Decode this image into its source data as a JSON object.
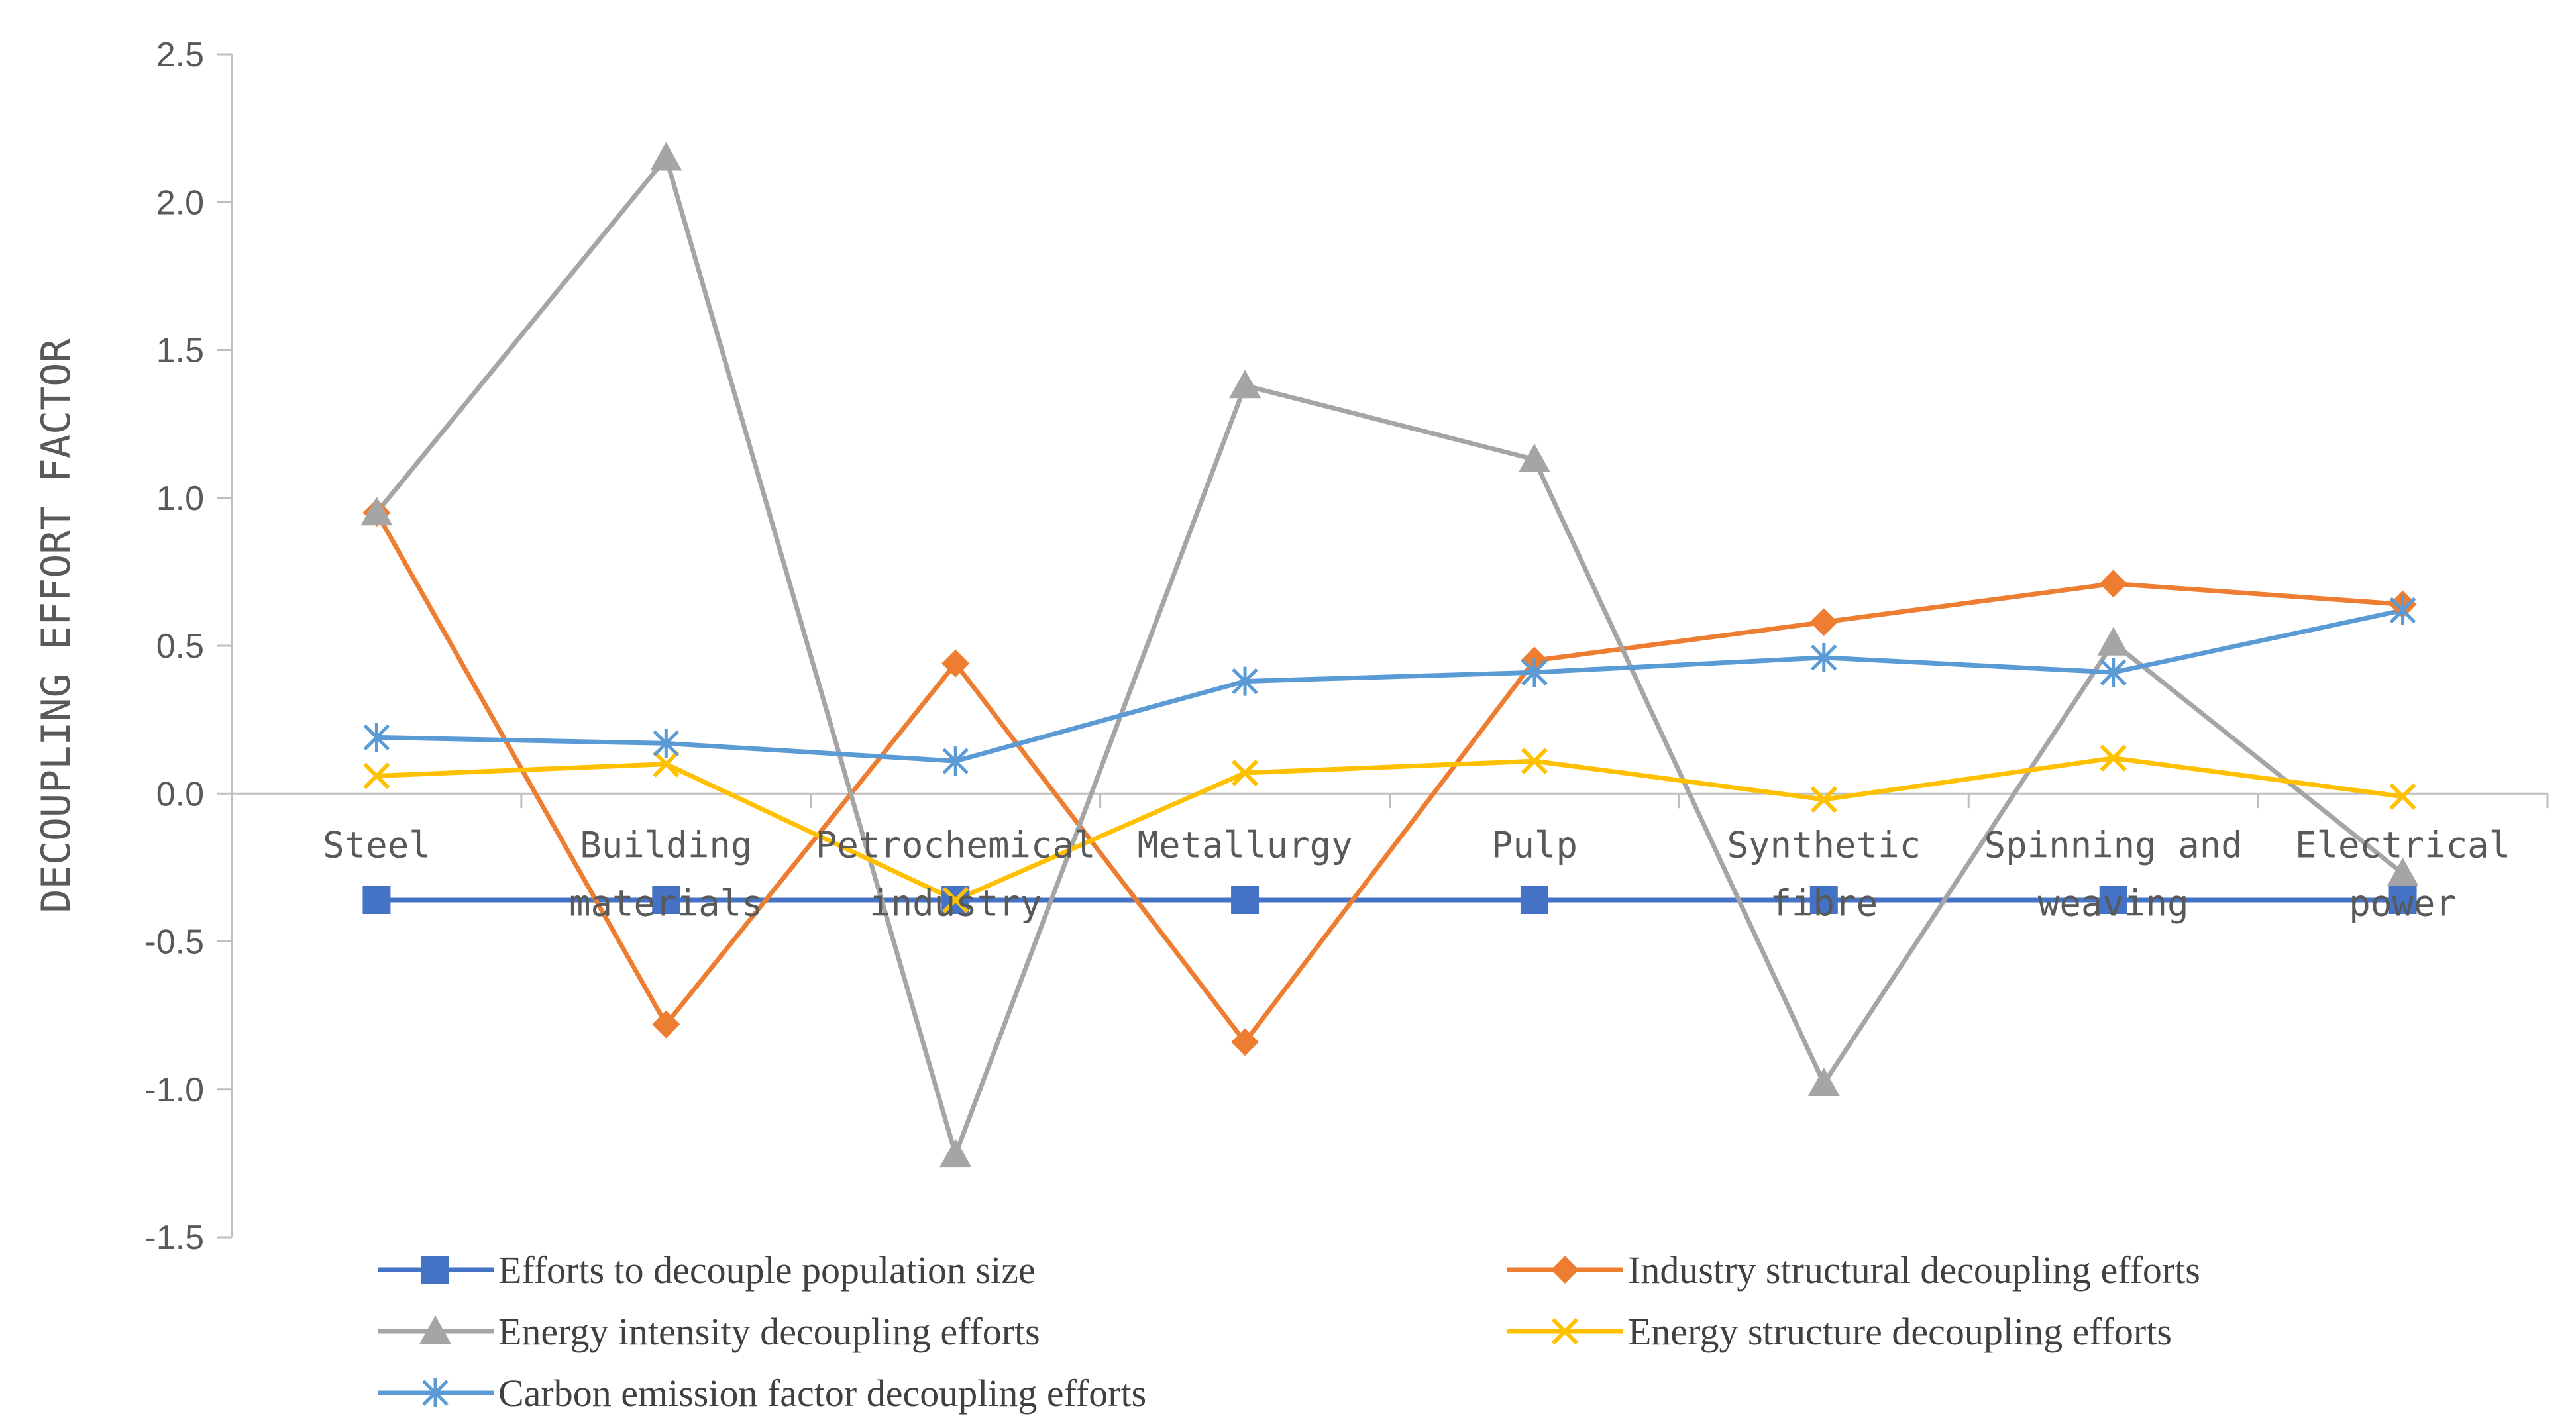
{
  "chart_data": {
    "type": "line",
    "ylabel": "DECOUPLING EFFORT FACTOR",
    "xlabel": "",
    "ylim": [
      -1.5,
      2.5
    ],
    "yticks": [
      "2.5",
      "2.0",
      "1.5",
      "1.0",
      "0.5",
      "0.0",
      "-0.5",
      "-1.0",
      "-1.5"
    ],
    "categories": [
      [
        "Steel"
      ],
      [
        "Building",
        "materials"
      ],
      [
        "Petrochemical",
        "industry"
      ],
      [
        "Metallurgy"
      ],
      [
        "Pulp"
      ],
      [
        "Synthetic",
        "fibre"
      ],
      [
        "Spinning and",
        "weaving"
      ],
      [
        "Electrical",
        "power"
      ]
    ],
    "grid": false,
    "legend_position": "bottom",
    "series": [
      {
        "name": "Efforts to decouple population size",
        "color": "#4472C4",
        "marker": "square",
        "values": [
          -0.36,
          -0.36,
          -0.36,
          -0.36,
          -0.36,
          -0.36,
          -0.36,
          -0.36
        ]
      },
      {
        "name": "Industry structural decoupling efforts",
        "color": "#ED7D31",
        "marker": "diamond",
        "values": [
          0.95,
          -0.78,
          0.44,
          -0.84,
          0.45,
          0.58,
          0.71,
          0.64
        ]
      },
      {
        "name": "Energy intensity decoupling efforts",
        "color": "#A5A5A5",
        "marker": "triangle",
        "values": [
          0.95,
          2.15,
          -1.22,
          1.38,
          1.13,
          -0.98,
          0.51,
          -0.27
        ]
      },
      {
        "name": "Energy structure decoupling efforts",
        "color": "#FFC000",
        "marker": "x",
        "values": [
          0.06,
          0.1,
          -0.36,
          0.07,
          0.11,
          -0.02,
          0.12,
          -0.01
        ]
      },
      {
        "name": "Carbon emission factor decoupling efforts",
        "color": "#5B9BD5",
        "marker": "star",
        "values": [
          0.19,
          0.17,
          0.11,
          0.38,
          0.41,
          0.46,
          0.41,
          0.62
        ]
      }
    ]
  }
}
